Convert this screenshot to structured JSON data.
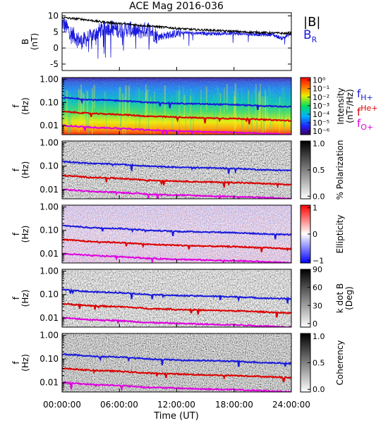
{
  "title": "ACE Mag 2016-036",
  "x_axis": {
    "label": "Time (UT)",
    "ticks": [
      "00:00:00",
      "06:00:00",
      "12:00:00",
      "18:00:00",
      "24:00:00"
    ],
    "range_hours": [
      0,
      24
    ]
  },
  "freq_axis": {
    "scale": "log",
    "range_hz": [
      0.004,
      1.2
    ],
    "ticks": [
      "1.00",
      "0.10",
      "0.01"
    ],
    "tick_values": [
      1.0,
      0.1,
      0.01
    ]
  },
  "lines": {
    "fH": {
      "label": "f",
      "sub": "H+",
      "color": "#1a1adc"
    },
    "fHe": {
      "label": "f",
      "sup": "He+",
      "color": "#dc0000"
    },
    "fO": {
      "label": "f",
      "sub": "O+",
      "color": "#e000e0"
    }
  },
  "panels": [
    {
      "id": "b-field",
      "ylabel": "B",
      "yunit": "(nT)"
    },
    {
      "id": "intensity",
      "ylabel": "f",
      "yunit": "(Hz)",
      "colorbar_label": "Intensity",
      "colorbar_unit": "(nT²/Hz)",
      "colorbar_ticks": [
        "10⁰",
        "10⁻¹",
        "10⁻²",
        "10⁻³",
        "10⁻⁴",
        "10⁻⁵",
        "10⁻⁶"
      ],
      "colorbar_tick_values": [
        0,
        -1,
        -2,
        -3,
        -4,
        -5,
        -6
      ]
    },
    {
      "id": "polarization",
      "ylabel": "f",
      "yunit": "(Hz)",
      "colorbar_label": "% Polarization",
      "colorbar_ticks": [
        "1.0",
        "0.5",
        "0.0"
      ],
      "colorbar_tick_values": [
        1.0,
        0.5,
        0.0
      ]
    },
    {
      "id": "ellipticity",
      "ylabel": "f",
      "yunit": "(Hz)",
      "colorbar_label": "Ellipticity",
      "colorbar_ticks": [
        "1",
        "0",
        "−1"
      ],
      "colorbar_tick_values": [
        1,
        0,
        -1
      ]
    },
    {
      "id": "k-dot-b",
      "ylabel": "f",
      "yunit": "(Hz)",
      "colorbar_label": "k dot B",
      "colorbar_unit": "(Deg)",
      "colorbar_ticks": [
        "90",
        "60",
        "30",
        "0"
      ],
      "colorbar_tick_values": [
        90,
        60,
        30,
        0
      ]
    },
    {
      "id": "coherency",
      "ylabel": "f",
      "yunit": "(Hz)",
      "colorbar_label": "Coherency",
      "colorbar_ticks": [
        "1.0",
        "0.5",
        "0.0"
      ],
      "colorbar_tick_values": [
        1.0,
        0.5,
        0.0
      ]
    }
  ],
  "chart_data": [
    {
      "type": "line",
      "panel": "b-field",
      "x_unit": "hours UT",
      "ylim": [
        -7,
        11
      ],
      "yticks": [
        10,
        5,
        0,
        -5
      ],
      "series": [
        {
          "name": "|B|",
          "color": "#000000",
          "x": [
            0,
            1,
            2,
            3,
            4,
            5,
            6,
            7,
            8,
            9,
            10,
            11,
            12,
            13,
            14,
            15,
            16,
            17,
            18,
            19,
            20,
            21,
            22,
            23,
            24
          ],
          "values": [
            9.5,
            9.2,
            9.0,
            8.6,
            8.2,
            7.9,
            7.6,
            7.4,
            7.1,
            6.9,
            6.6,
            6.4,
            6.1,
            5.9,
            5.7,
            5.6,
            5.5,
            5.3,
            5.2,
            5.0,
            4.9,
            4.8,
            4.7,
            4.6,
            4.5
          ]
        },
        {
          "name": "B",
          "sub": "R",
          "color": "#1a1adc",
          "x": [
            0,
            1,
            2,
            3,
            4,
            5,
            6,
            7,
            8,
            9,
            10,
            11,
            12,
            13,
            14,
            15,
            16,
            17,
            18,
            19,
            20,
            21,
            22,
            23,
            24
          ],
          "values": [
            8.0,
            4.5,
            2.0,
            3.5,
            5.5,
            6.5,
            5.5,
            6.0,
            5.0,
            6.0,
            3.5,
            4.0,
            4.5,
            4.8,
            4.5,
            4.6,
            4.5,
            4.5,
            4.5,
            4.4,
            4.3,
            4.2,
            4.2,
            3.0,
            4.5
          ]
        }
      ]
    },
    {
      "type": "line",
      "panel": "frequency-lines",
      "x_unit": "hours UT",
      "y_unit": "Hz",
      "series": [
        {
          "name": "fH+",
          "x": [
            0,
            3,
            6,
            9,
            12,
            15,
            18,
            21,
            24
          ],
          "values": [
            0.16,
            0.13,
            0.12,
            0.1,
            0.09,
            0.085,
            0.08,
            0.07,
            0.065
          ]
        },
        {
          "name": "fHe+",
          "x": [
            0,
            3,
            6,
            9,
            12,
            15,
            18,
            21,
            24
          ],
          "values": [
            0.04,
            0.033,
            0.03,
            0.025,
            0.023,
            0.021,
            0.02,
            0.018,
            0.016
          ]
        },
        {
          "name": "fO+",
          "x": [
            0,
            3,
            6,
            9,
            12,
            15,
            18,
            21,
            24
          ],
          "values": [
            0.01,
            0.0083,
            0.0075,
            0.0063,
            0.0058,
            0.0053,
            0.005,
            0.0045,
            0.004
          ]
        }
      ]
    }
  ]
}
